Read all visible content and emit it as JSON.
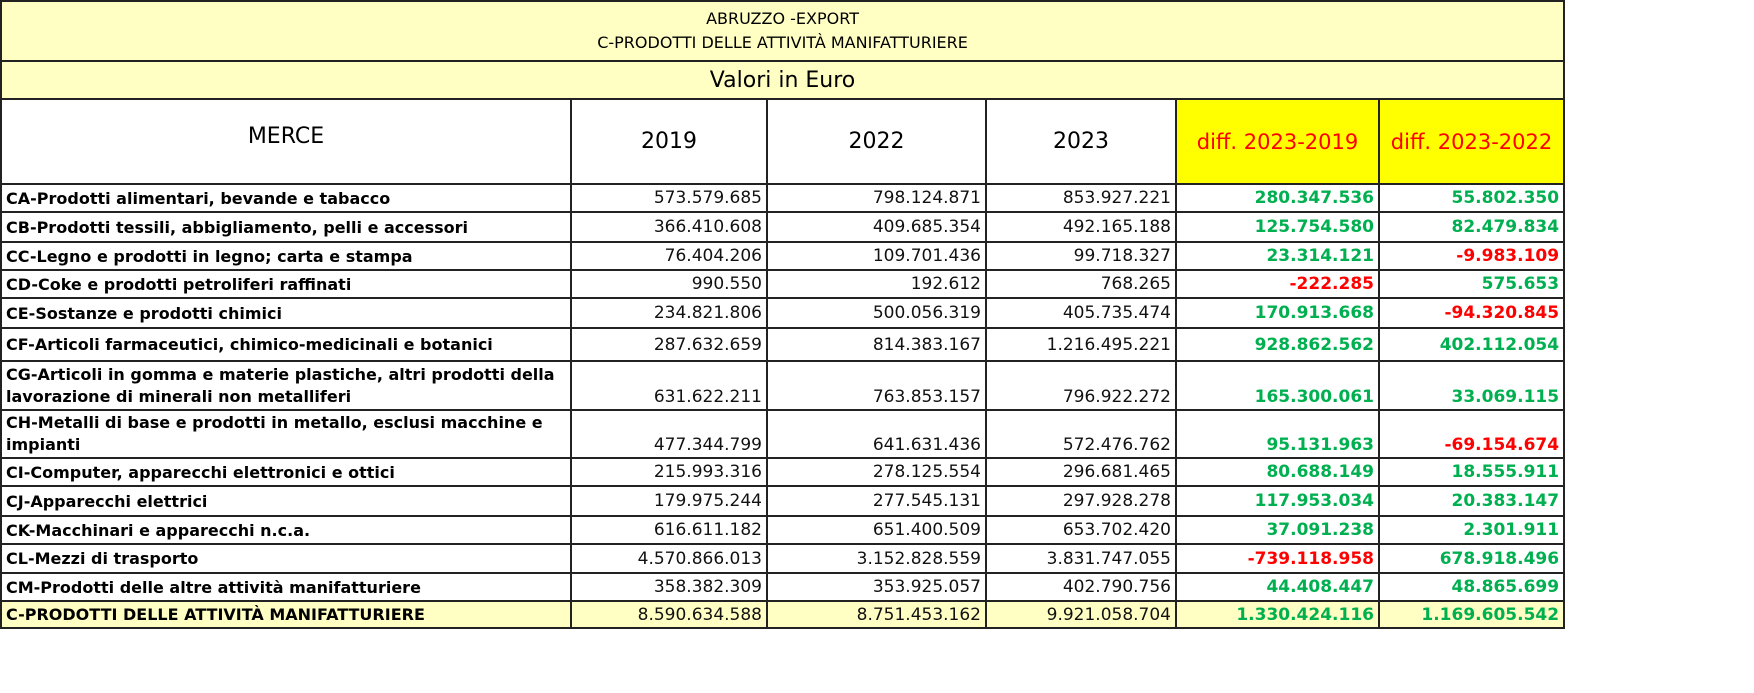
{
  "title": {
    "line1": "ABRUZZO -EXPORT",
    "line2": "C-PRODOTTI DELLE ATTIVITÀ MANIFATTURIERE"
  },
  "subtitle": "Valori in Euro",
  "headers": [
    "MERCE",
    "2019",
    "2022",
    "2023",
    "diff. 2023-2019",
    "diff. 2023-2022"
  ],
  "colors": {
    "positive": "#00b050",
    "negative": "#ff0000",
    "header_highlight": "#ffff00",
    "band": "#ffffc4"
  },
  "rows": [
    {
      "merce": "CA-Prodotti alimentari, bevande e tabacco",
      "v2019": "573.579.685",
      "v2022": "798.124.871",
      "v2023": "853.927.221",
      "d19": "280.347.536",
      "d22": "55.802.350"
    },
    {
      "merce": "CB-Prodotti tessili, abbigliamento, pelli e accessori",
      "v2019": "366.410.608",
      "v2022": "409.685.354",
      "v2023": "492.165.188",
      "d19": "125.754.580",
      "d22": "82.479.834"
    },
    {
      "merce": "CC-Legno e prodotti in legno; carta e stampa",
      "v2019": "76.404.206",
      "v2022": "109.701.436",
      "v2023": "99.718.327",
      "d19": "23.314.121",
      "d22": "-9.983.109"
    },
    {
      "merce": "CD-Coke e prodotti petroliferi raffinati",
      "v2019": "990.550",
      "v2022": "192.612",
      "v2023": "768.265",
      "d19": "-222.285",
      "d22": "575.653"
    },
    {
      "merce": "CE-Sostanze e prodotti chimici",
      "v2019": "234.821.806",
      "v2022": "500.056.319",
      "v2023": "405.735.474",
      "d19": "170.913.668",
      "d22": "-94.320.845"
    },
    {
      "merce": "CF-Articoli farmaceutici, chimico-medicinali e botanici",
      "v2019": "287.632.659",
      "v2022": "814.383.167",
      "v2023": "1.216.495.221",
      "d19": "928.862.562",
      "d22": "402.112.054"
    },
    {
      "merce": "CG-Articoli in gomma e materie plastiche, altri prodotti della lavorazione di minerali non metalliferi",
      "v2019": "631.622.211",
      "v2022": "763.853.157",
      "v2023": "796.922.272",
      "d19": "165.300.061",
      "d22": "33.069.115"
    },
    {
      "merce": "CH-Metalli di base e prodotti in metallo, esclusi macchine e impianti",
      "v2019": "477.344.799",
      "v2022": "641.631.436",
      "v2023": "572.476.762",
      "d19": "95.131.963",
      "d22": "-69.154.674"
    },
    {
      "merce": "CI-Computer, apparecchi elettronici e ottici",
      "v2019": "215.993.316",
      "v2022": "278.125.554",
      "v2023": "296.681.465",
      "d19": "80.688.149",
      "d22": "18.555.911"
    },
    {
      "merce": "CJ-Apparecchi elettrici",
      "v2019": "179.975.244",
      "v2022": "277.545.131",
      "v2023": "297.928.278",
      "d19": "117.953.034",
      "d22": "20.383.147"
    },
    {
      "merce": "CK-Macchinari e apparecchi n.c.a.",
      "v2019": "616.611.182",
      "v2022": "651.400.509",
      "v2023": "653.702.420",
      "d19": "37.091.238",
      "d22": "2.301.911"
    },
    {
      "merce": "CL-Mezzi di trasporto",
      "v2019": "4.570.866.013",
      "v2022": "3.152.828.559",
      "v2023": "3.831.747.055",
      "d19": "-739.118.958",
      "d22": "678.918.496"
    },
    {
      "merce": "CM-Prodotti delle altre attività manifatturiere",
      "v2019": "358.382.309",
      "v2022": "353.925.057",
      "v2023": "402.790.756",
      "d19": "44.408.447",
      "d22": "48.865.699"
    }
  ],
  "total": {
    "merce": "C-PRODOTTI DELLE ATTIVITÀ MANIFATTURIERE",
    "v2019": "8.590.634.588",
    "v2022": "8.751.453.162",
    "v2023": "9.921.058.704",
    "d19": "1.330.424.116",
    "d22": "1.169.605.542"
  }
}
